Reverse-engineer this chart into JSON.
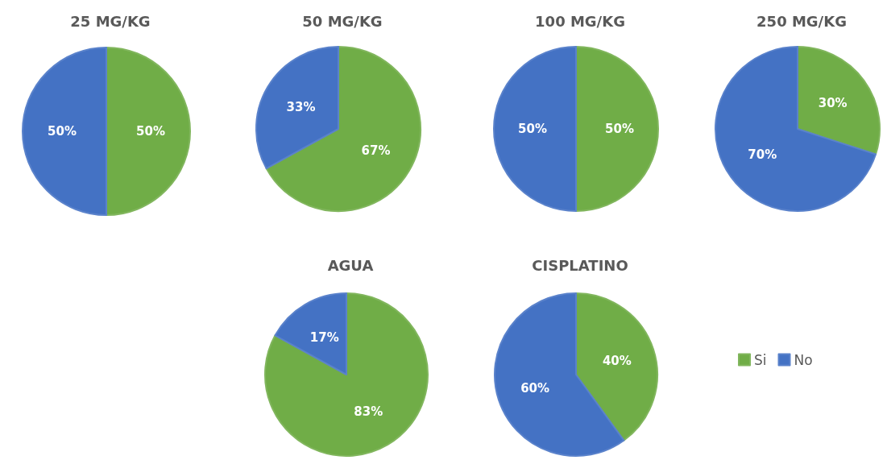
{
  "chart_data": [
    {
      "type": "pie",
      "title": "25 MG/KG",
      "categories": [
        null,
        null
      ],
      "values": [
        50,
        50
      ],
      "colors": [
        "#70ad47",
        "#4472c4"
      ],
      "value_labels": [
        "50%",
        "50%"
      ]
    },
    {
      "type": "pie",
      "title": "50 MG/KG",
      "categories": [
        null,
        null
      ],
      "values": [
        67,
        33
      ],
      "colors": [
        "#70ad47",
        "#4472c4"
      ],
      "value_labels": [
        "67%",
        "33%"
      ]
    },
    {
      "type": "pie",
      "title": "100 MG/KG",
      "categories": [
        null,
        null
      ],
      "values": [
        50,
        50
      ],
      "colors": [
        "#70ad47",
        "#4472c4"
      ],
      "value_labels": [
        "50%",
        "50%"
      ]
    },
    {
      "type": "pie",
      "title": "250 MG/KG",
      "categories": [
        null,
        null
      ],
      "values": [
        30,
        70
      ],
      "colors": [
        "#70ad47",
        "#4472c4"
      ],
      "value_labels": [
        "30%",
        "70%"
      ]
    },
    {
      "type": "pie",
      "title": "AGUA",
      "categories": [
        null,
        null
      ],
      "values": [
        83,
        17
      ],
      "colors": [
        "#70ad47",
        "#4472c4"
      ],
      "value_labels": [
        "83%",
        "17%"
      ]
    },
    {
      "type": "pie",
      "title": "CISPLATINO",
      "categories": [
        "Si",
        "No"
      ],
      "values": [
        40,
        60
      ],
      "colors": [
        "#70ad47",
        "#4472c4"
      ],
      "value_labels": [
        "40%",
        "60%"
      ],
      "legend": "right"
    }
  ]
}
